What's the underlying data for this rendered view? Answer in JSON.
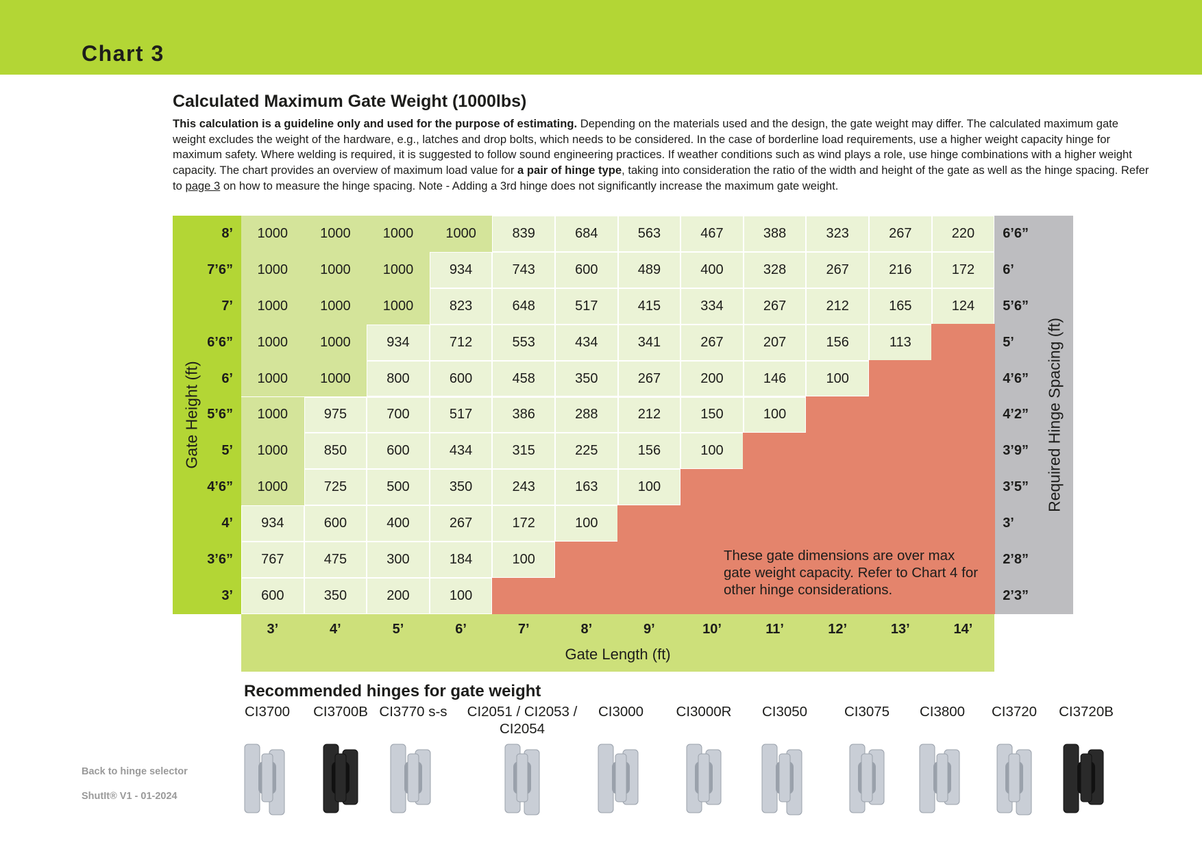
{
  "header": {
    "title": "Chart 3"
  },
  "section": {
    "title": "Calculated Maximum Gate Weight (1000lbs)",
    "paragraph": {
      "lead": "This calculation is a guideline only and used for the purpose of estimating.",
      "part1": "Depending on the materials used and the design, the gate weight may differ. The calculated maximum gate weight excludes the weight of the hardware, e.g., latches and drop bolts, which needs to be considered. In the case of borderline load requirements, use a higher weight capacity hinge for maximum safety. Where welding is required, it is suggested to follow sound engineering practices. If weather conditions such as wind plays a role, use hinge combinations with a higher weight capacity. The chart provides an overview of maximum load value for",
      "emphasis": "a pair of hinge type",
      "part2": ", taking into consideration the ratio of the width and height of the gate as well as the hinge spacing. Refer to",
      "link": "page 3",
      "part3": "on how to measure the hinge spacing. Note - Adding a 3rd hinge does not significantly increase the maximum gate weight."
    }
  },
  "table": {
    "y_axis_label": "Gate Height (ft)",
    "x_axis_label": "Gate Length (ft)",
    "spacing_label": "Required Hinge Spacing (ft)",
    "lengths": [
      "3’",
      "4’",
      "5’",
      "6’",
      "7’",
      "8’",
      "9’",
      "10’",
      "11’",
      "12’",
      "13’",
      "14’"
    ],
    "rows": [
      {
        "height": "8’",
        "spacing": "6’6”",
        "values": [
          1000,
          1000,
          1000,
          1000,
          839,
          684,
          563,
          467,
          388,
          323,
          267,
          220
        ]
      },
      {
        "height": "7’6”",
        "spacing": "6’",
        "values": [
          1000,
          1000,
          1000,
          934,
          743,
          600,
          489,
          400,
          328,
          267,
          216,
          172
        ]
      },
      {
        "height": "7’",
        "spacing": "5’6”",
        "values": [
          1000,
          1000,
          1000,
          823,
          648,
          517,
          415,
          334,
          267,
          212,
          165,
          124
        ]
      },
      {
        "height": "6’6”",
        "spacing": "5’",
        "values": [
          1000,
          1000,
          934,
          712,
          553,
          434,
          341,
          267,
          207,
          156,
          113
        ]
      },
      {
        "height": "6’",
        "spacing": "4’6”",
        "values": [
          1000,
          1000,
          800,
          600,
          458,
          350,
          267,
          200,
          146,
          100
        ]
      },
      {
        "height": "5’6”",
        "spacing": "4’2”",
        "values": [
          1000,
          975,
          700,
          517,
          386,
          288,
          212,
          150,
          100
        ]
      },
      {
        "height": "5’",
        "spacing": "3’9”",
        "values": [
          1000,
          850,
          600,
          434,
          315,
          225,
          156,
          100
        ]
      },
      {
        "height": "4’6”",
        "spacing": "3’5”",
        "values": [
          1000,
          725,
          500,
          350,
          243,
          163,
          100
        ]
      },
      {
        "height": "4’",
        "spacing": "3’",
        "values": [
          934,
          600,
          400,
          267,
          172,
          100
        ]
      },
      {
        "height": "3’6”",
        "spacing": "2’8”",
        "values": [
          767,
          475,
          300,
          184,
          100
        ]
      },
      {
        "height": "3’",
        "spacing": "2’3”",
        "values": [
          600,
          350,
          200,
          100
        ]
      }
    ],
    "note": "These gate dimensions are over max gate weight capacity. Refer to Chart 4 for other hinge considerations."
  },
  "hinges": {
    "title": "Recommended hinges for gate weight",
    "items": [
      "CI3700",
      "CI3700B",
      "CI3770 s-s",
      "CI2051 / CI2053 / CI2054",
      "CI3000",
      "CI3000R",
      "CI3050",
      "CI3075",
      "CI3800",
      "CI3720",
      "CI3720B"
    ]
  },
  "footer": {
    "link": "Back to hinge selector",
    "version": "ShutIt® V1 - 01-2024"
  }
}
